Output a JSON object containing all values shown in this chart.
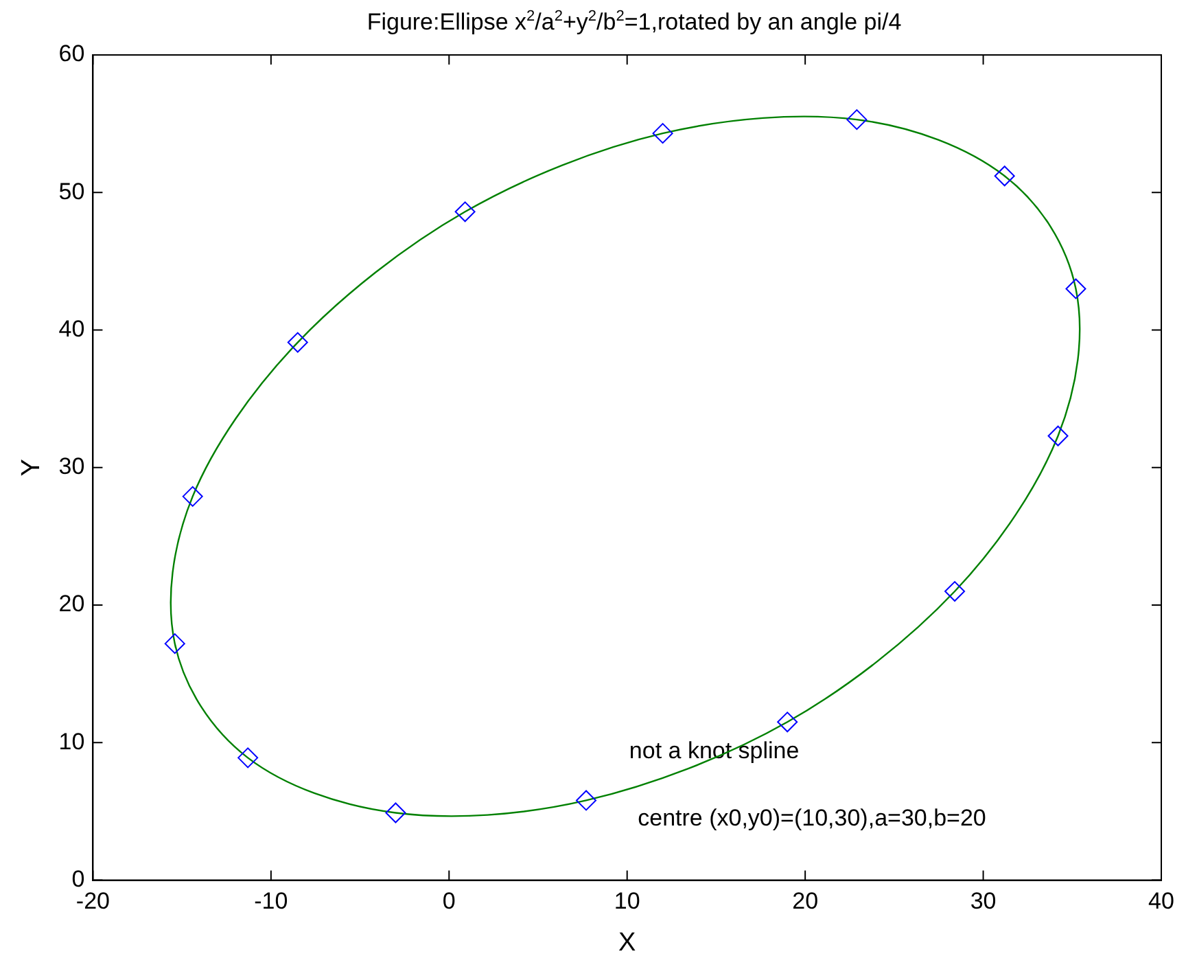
{
  "chart_data": {
    "type": "scatter",
    "title": "Figure:Ellipse x$^{2}$/a$^{2}$+y$^{2}$/b$^{2}$=1,rotated by an angle pi/4",
    "xlabel": "X",
    "ylabel": "Y",
    "xlim": [
      -20,
      40
    ],
    "xticks": [
      -20,
      -10,
      0,
      10,
      20,
      30,
      40
    ],
    "ylim": [
      0,
      60
    ],
    "yticks": [
      0,
      10,
      20,
      30,
      40,
      50,
      60
    ],
    "grid": false,
    "legend": false,
    "series": [
      {
        "type": "scatter",
        "color": "#0000ff",
        "marker": "diamond",
        "x": [
          31.2,
          35.2,
          34.2,
          28.4,
          19.0,
          7.7,
          -3.0,
          -11.3,
          -15.4,
          -14.4,
          -8.5,
          0.9,
          12.0,
          22.9
        ],
        "values": [
          51.2,
          43.0,
          32.3,
          21.0,
          11.5,
          5.8,
          4.9,
          8.9,
          17.2,
          27.9,
          39.1,
          48.6,
          54.3,
          55.3
        ]
      }
    ],
    "annotations": [
      "not a knot spline",
      "centre (x0,y0)=(10,30),a=30,b=20"
    ]
  }
}
